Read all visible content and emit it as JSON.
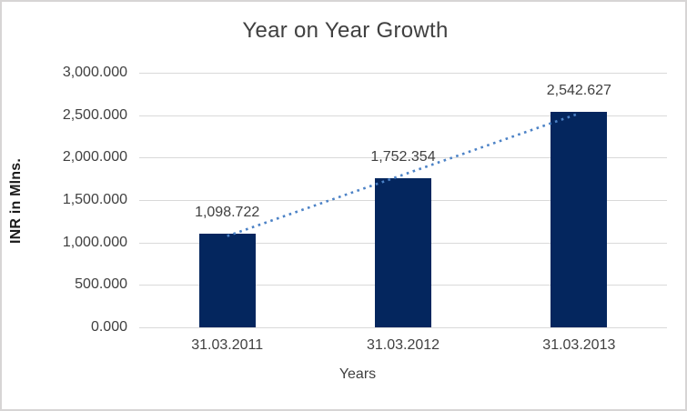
{
  "chart_data": {
    "type": "bar",
    "title": "Year on Year Growth",
    "xlabel": "Years",
    "ylabel": "INR in Mlns.",
    "categories": [
      "31.03.2011",
      "31.03.2012",
      "31.03.2013"
    ],
    "series": [
      {
        "name": "INR in Mlns.",
        "values": [
          1098.722,
          1752.354,
          2542.627
        ],
        "data_labels": [
          "1,098.722",
          "1,752.354",
          "2,542.627"
        ]
      }
    ],
    "ylim": [
      0,
      3000
    ],
    "ytick_interval": 500,
    "ytick_labels": [
      "0.000",
      "500.000",
      "1,000.000",
      "1,500.000",
      "2,000.000",
      "2,500.000",
      "3,000.000"
    ],
    "grid": true,
    "legend": false,
    "trendline": {
      "type": "linear",
      "style": "dotted"
    },
    "colors": {
      "bar": "#04265e",
      "trendline": "#4c82c6",
      "gridline": "#d9d9d9",
      "text": "#404040",
      "axis_title_text": "#1a1a1a",
      "border": "#d7d5d5",
      "background": "#ffffff"
    }
  }
}
